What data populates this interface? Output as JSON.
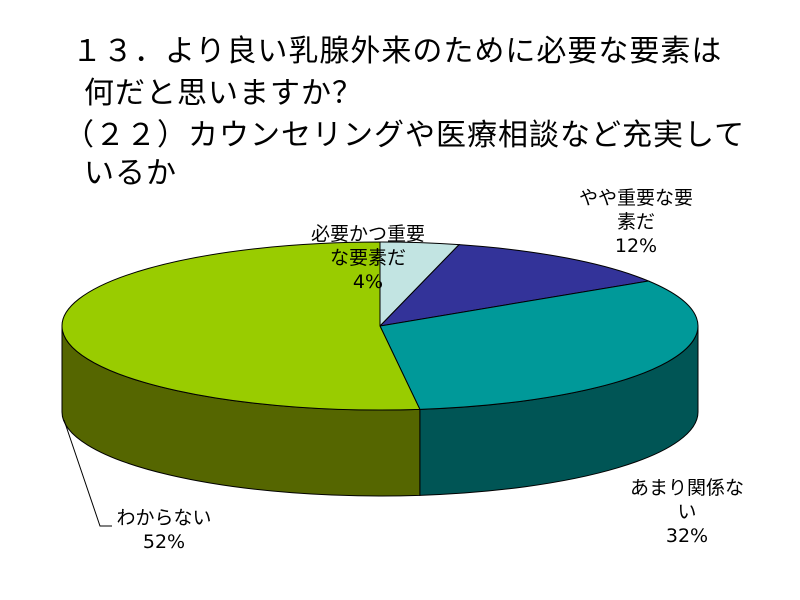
{
  "title_lines": [
    "１３．より良い乳腺外来のために必要な要素は",
    "何だと思いますか？",
    "（２２）カウンセリングや医療相談など充実して",
    "いるか"
  ],
  "chart_data": {
    "type": "pie",
    "title": "１３．より良い乳腺外来のために必要な要素は何だと思いますか？（２２）カウンセリングや医療相談など充実しているか",
    "slices": [
      {
        "label_lines": [
          "必要かつ重要",
          "な要素だ"
        ],
        "percent_text": "4%",
        "value": 4,
        "color": "#c2e4e2",
        "side_color": "#8fb3b1"
      },
      {
        "label_lines": [
          "やや重要な要",
          "素だ"
        ],
        "percent_text": "12%",
        "value": 12,
        "color": "#333399",
        "side_color": "#1f1f66"
      },
      {
        "label_lines": [
          "あまり関係な",
          "い"
        ],
        "percent_text": "32%",
        "value": 32,
        "color": "#009999",
        "side_color": "#005555"
      },
      {
        "label_lines": [
          "わからない"
        ],
        "percent_text": "52%",
        "value": 52,
        "color": "#99cc00",
        "side_color": "#556600"
      }
    ],
    "style": "3d-pie",
    "legend": "none"
  }
}
